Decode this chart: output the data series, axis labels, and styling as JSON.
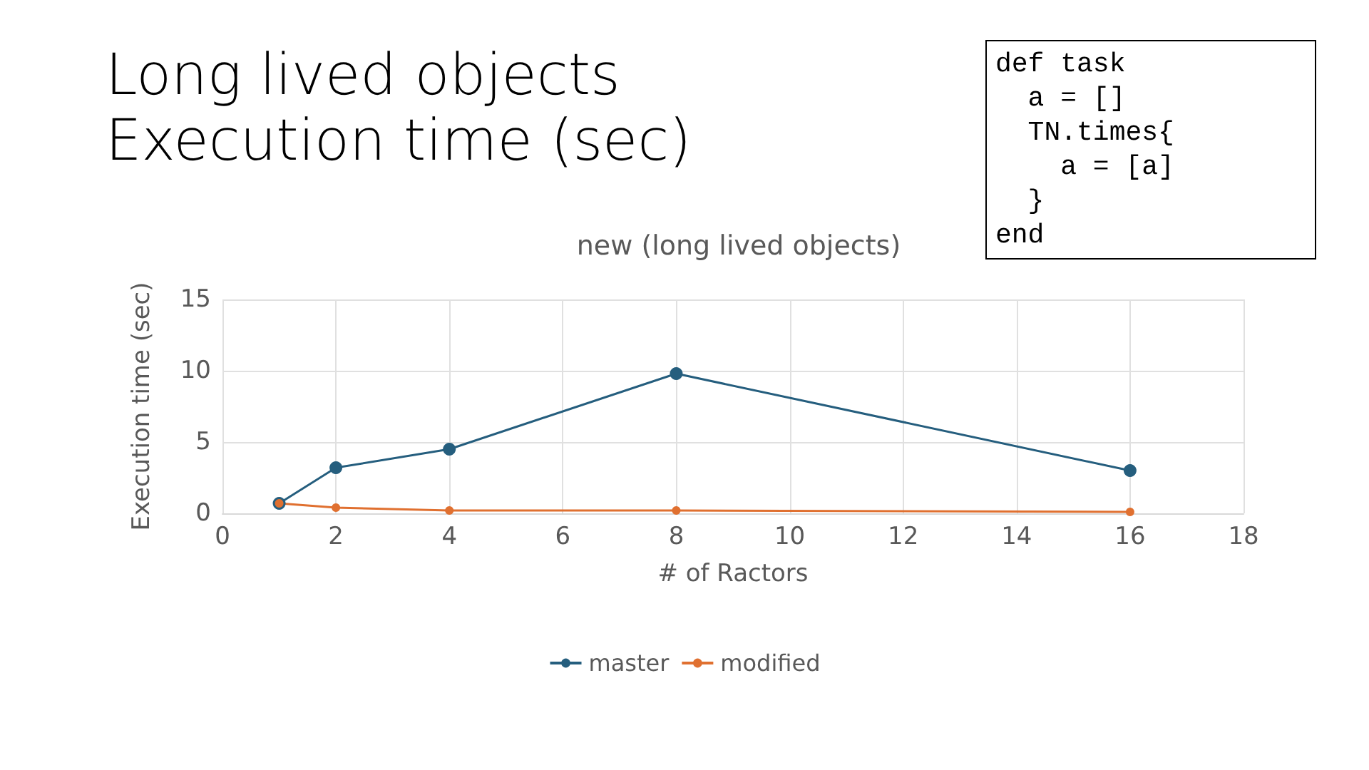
{
  "chart_data": {
    "type": "line",
    "title": "Long lived objects\nExecution time (sec)",
    "subtitle": "new (long lived objects)",
    "xlabel": "# of Ractors",
    "ylabel": "Execution time (sec)",
    "annotations": [
      "def task\n  a = []\n  TN.times{\n    a = [a]\n  }\nend"
    ],
    "series": [
      {
        "name": "master",
        "color": "#255e7e",
        "x": [
          1,
          2,
          4,
          8,
          16
        ],
        "values": [
          0.7,
          3.2,
          4.5,
          9.8,
          3.0
        ]
      },
      {
        "name": "modified",
        "color": "#e07030",
        "x": [
          1,
          2,
          4,
          8,
          16
        ],
        "values": [
          0.7,
          0.4,
          0.2,
          0.2,
          0.1
        ]
      }
    ],
    "xlim": [
      0,
      18
    ],
    "xticks": [
      0,
      2,
      4,
      6,
      8,
      10,
      12,
      14,
      16,
      18
    ],
    "ylim": [
      0,
      15
    ],
    "yticks": [
      0,
      5,
      10,
      15
    ],
    "grid": true,
    "legend": "bottom",
    "marker": "circle",
    "line_style": "solid"
  }
}
